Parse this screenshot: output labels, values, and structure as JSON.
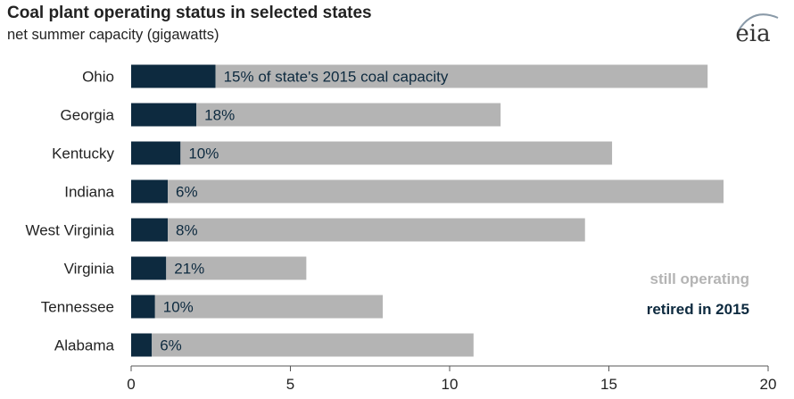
{
  "header": {
    "title": "Coal plant operating status in selected states",
    "subtitle": "net summer capacity (gigawatts)",
    "logo_text": "eia"
  },
  "colors": {
    "retired": "#0d2a3f",
    "operating": "#b4b4b4",
    "axis": "#555555",
    "text": "#222222"
  },
  "chart_data": {
    "type": "bar",
    "orientation": "horizontal",
    "stacked": true,
    "categories": [
      "Ohio",
      "Georgia",
      "Kentucky",
      "Indiana",
      "West Virginia",
      "Virginia",
      "Tennessee",
      "Alabama"
    ],
    "series": [
      {
        "name": "retired in 2015",
        "values": [
          2.65,
          2.05,
          1.55,
          1.15,
          1.15,
          1.1,
          0.75,
          0.65
        ]
      },
      {
        "name": "still operating",
        "values": [
          15.45,
          9.55,
          13.55,
          17.45,
          13.1,
          4.4,
          7.15,
          10.1
        ]
      }
    ],
    "data_labels": [
      "15% of state's 2015 coal capacity",
      "18%",
      "10%",
      "6%",
      "8%",
      "21%",
      "10%",
      "6%"
    ],
    "xlim": [
      0,
      20
    ],
    "xticks": [
      0,
      5,
      10,
      15,
      20
    ],
    "legend_position": "bottom-right",
    "grid": false
  }
}
